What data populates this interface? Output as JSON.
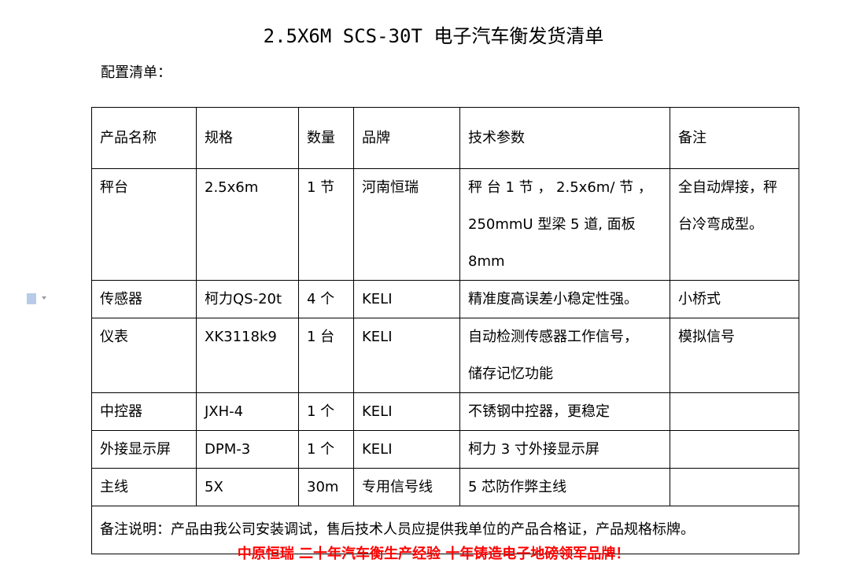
{
  "title": "2.5X6M SCS-30T 电子汽车衡发货清单",
  "subtitle": "配置清单：",
  "icons": {
    "doc": "document-icon",
    "caret": "caret-down-icon"
  },
  "table": {
    "headers": [
      "产品名称",
      "规格",
      "数量",
      "品牌",
      "技术参数",
      "备注"
    ],
    "rows": [
      [
        "秤台",
        "2.5x6m",
        "1 节",
        "河南恒瑞",
        "秤 台 1 节 ， 2.5x6m/ 节 ，\n250mmU 型梁 5 道, 面板 8mm",
        "全自动焊接，秤\n台冷弯成型。"
      ],
      [
        "传感器",
        "柯力QS-20t",
        "4 个",
        "KELI",
        "精准度高误差小稳定性强。",
        "小桥式"
      ],
      [
        "仪表",
        "XK3118k9",
        "1 台",
        "KELI",
        "自动检测传感器工作信号，\n储存记忆功能",
        "模拟信号"
      ],
      [
        "中控器",
        "JXH-4",
        "1 个",
        "KELI",
        "不锈钢中控器，更稳定",
        ""
      ],
      [
        "外接显示屏",
        "DPM-3",
        "1 个",
        "KELI",
        "柯力 3 寸外接显示屏",
        ""
      ],
      [
        "主线",
        "5X",
        "30m",
        "专用信号线",
        "5 芯防作弊主线",
        ""
      ]
    ],
    "note": "备注说明：产品由我公司安装调试，售后技术人员应提供我单位的产品合格证，产品规格标牌。"
  },
  "footer": "中原恒瑞  二十年汽车衡生产经验  十年铸造电子地磅领军品牌！",
  "colors": {
    "footer": "#ff0000"
  }
}
